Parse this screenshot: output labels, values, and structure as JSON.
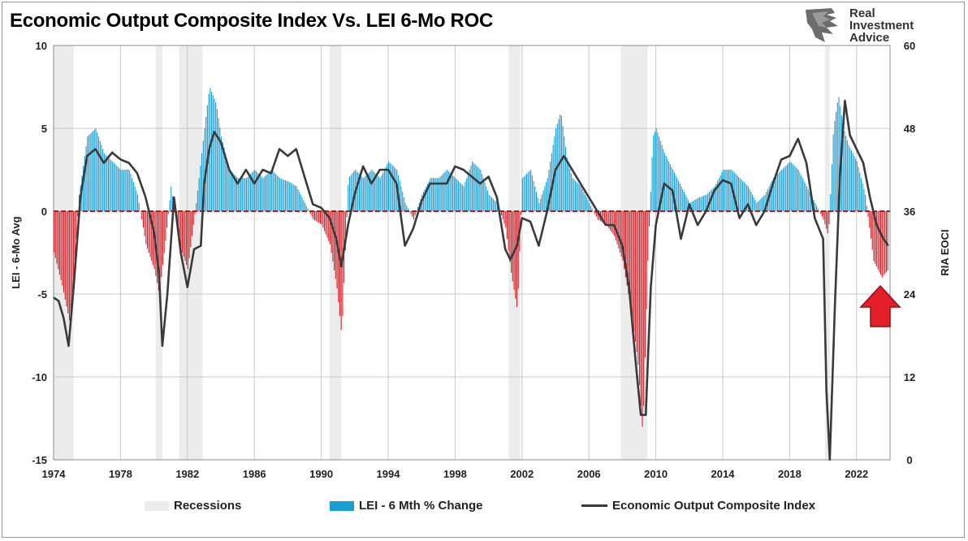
{
  "title": "Economic Output Composite Index Vs. LEI 6-Mo ROC",
  "logo": {
    "lines": [
      "Real",
      "Investment",
      "Advice"
    ],
    "icon": "eagle-head-icon"
  },
  "colors": {
    "recession": "#ececec",
    "lei_positive": "#1b9ed6",
    "lei_negative": "#d41f26",
    "eoci": "#3a3a3a",
    "zero_line": "#c0171d",
    "arrow": "#e21f26"
  },
  "legend": {
    "recessions": "Recessions",
    "lei": "LEI - 6 Mth % Change",
    "eoci": "Economic Output Composite Index"
  },
  "chart_data": {
    "type": "bar+line",
    "title": "Economic Output Composite Index Vs. LEI 6-Mo ROC",
    "x_tick_labels": [
      "1974",
      "1978",
      "1982",
      "1986",
      "1990",
      "1994",
      "1998",
      "2002",
      "2006",
      "2010",
      "2014",
      "2018",
      "2022"
    ],
    "xlim": [
      1974,
      2024
    ],
    "left_axis": {
      "label": "LEI - 6-Mo Avg",
      "ticks": [
        "10",
        "5",
        "0",
        "-5",
        "-10",
        "-15"
      ],
      "ylim": [
        -15,
        10
      ]
    },
    "right_axis": {
      "label": "RIA EOCI",
      "ticks": [
        "60",
        "48",
        "36",
        "24",
        "12",
        "0"
      ],
      "ylim": [
        0,
        60
      ]
    },
    "grid": true,
    "legend_position": "bottom",
    "recessions": [
      [
        1974.0,
        1975.2
      ],
      [
        1980.1,
        1980.5
      ],
      [
        1981.5,
        1982.9
      ],
      [
        1990.5,
        1991.2
      ],
      [
        2001.2,
        2001.9
      ],
      [
        2007.9,
        2009.5
      ],
      [
        2020.1,
        2020.4
      ]
    ],
    "series": [
      {
        "name": "LEI - 6 Mth % Change",
        "axis": "left",
        "kind": "bar",
        "x": [
          1974.0,
          1974.5,
          1975.0,
          1975.5,
          1976.0,
          1976.5,
          1977.0,
          1977.5,
          1978.0,
          1978.5,
          1979.0,
          1979.5,
          1980.0,
          1980.3,
          1980.7,
          1981.0,
          1981.5,
          1982.0,
          1982.5,
          1983.0,
          1983.3,
          1983.7,
          1984.0,
          1984.5,
          1985.0,
          1985.5,
          1986.0,
          1986.5,
          1987.0,
          1987.5,
          1988.0,
          1988.5,
          1989.0,
          1989.5,
          1990.0,
          1990.5,
          1990.9,
          1991.2,
          1991.6,
          1992.0,
          1992.5,
          1993.0,
          1993.5,
          1994.0,
          1994.5,
          1995.0,
          1995.5,
          1996.0,
          1996.5,
          1997.0,
          1997.5,
          1998.0,
          1998.5,
          1999.0,
          1999.5,
          2000.0,
          2000.5,
          2001.0,
          2001.3,
          2001.7,
          2002.0,
          2002.5,
          2003.0,
          2003.5,
          2004.0,
          2004.3,
          2004.7,
          2005.0,
          2005.5,
          2006.0,
          2006.5,
          2007.0,
          2007.5,
          2008.0,
          2008.5,
          2008.9,
          2009.2,
          2009.5,
          2009.8,
          2010.0,
          2010.5,
          2011.0,
          2011.5,
          2012.0,
          2012.5,
          2013.0,
          2013.5,
          2014.0,
          2014.5,
          2015.0,
          2015.5,
          2016.0,
          2016.5,
          2017.0,
          2017.5,
          2018.0,
          2018.5,
          2019.0,
          2019.5,
          2020.0,
          2020.3,
          2020.6,
          2020.9,
          2021.2,
          2021.5,
          2022.0,
          2022.5,
          2023.0,
          2023.5,
          2023.9
        ],
        "values": [
          -2.5,
          -4.5,
          -7.0,
          1.0,
          4.5,
          5.0,
          3.5,
          3.0,
          2.5,
          2.5,
          1.0,
          -2.0,
          -3.5,
          -5.0,
          -1.5,
          1.5,
          -2.0,
          -3.5,
          0.5,
          5.0,
          7.5,
          6.5,
          4.5,
          2.5,
          2.0,
          2.0,
          2.5,
          2.0,
          2.5,
          2.0,
          1.8,
          1.5,
          0.5,
          -0.5,
          -0.8,
          -2.0,
          -4.5,
          -7.5,
          2.0,
          2.5,
          2.0,
          2.5,
          2.0,
          3.0,
          2.5,
          0.5,
          -0.5,
          1.0,
          2.0,
          2.0,
          2.5,
          2.0,
          1.5,
          3.0,
          2.5,
          1.0,
          0.5,
          -1.0,
          -3.5,
          -6.0,
          2.0,
          2.5,
          0.5,
          2.0,
          5.0,
          6.0,
          3.0,
          2.0,
          1.5,
          0.5,
          -0.5,
          -0.8,
          -1.5,
          -3.0,
          -6.0,
          -9.0,
          -13.5,
          -3.0,
          4.5,
          5.0,
          3.5,
          2.5,
          1.5,
          0.5,
          0.8,
          1.0,
          1.5,
          2.5,
          2.5,
          2.0,
          1.5,
          0.5,
          1.0,
          2.0,
          2.5,
          3.0,
          2.5,
          1.5,
          0.5,
          -0.5,
          -1.5,
          5.0,
          7.0,
          5.0,
          4.0,
          3.0,
          1.0,
          -3.0,
          -4.0,
          -3.5
        ]
      },
      {
        "name": "Economic Output Composite Index",
        "axis": "right",
        "kind": "line",
        "x": [
          1974.0,
          1974.3,
          1974.6,
          1974.9,
          1975.2,
          1975.6,
          1976.0,
          1976.5,
          1977.0,
          1977.5,
          1978.0,
          1978.5,
          1979.0,
          1979.5,
          1980.0,
          1980.3,
          1980.5,
          1980.8,
          1981.2,
          1981.6,
          1982.0,
          1982.4,
          1982.8,
          1983.0,
          1983.3,
          1983.6,
          1984.0,
          1984.5,
          1985.0,
          1985.5,
          1986.0,
          1986.5,
          1987.0,
          1987.5,
          1988.0,
          1988.5,
          1989.0,
          1989.5,
          1990.0,
          1990.5,
          1990.9,
          1991.2,
          1991.6,
          1992.0,
          1992.5,
          1993.0,
          1993.5,
          1994.0,
          1994.5,
          1995.0,
          1995.5,
          1996.0,
          1996.5,
          1997.0,
          1997.5,
          1998.0,
          1998.5,
          1999.0,
          1999.5,
          2000.0,
          2000.5,
          2001.0,
          2001.3,
          2001.7,
          2002.0,
          2002.5,
          2003.0,
          2003.5,
          2004.0,
          2004.5,
          2005.0,
          2005.5,
          2006.0,
          2006.5,
          2007.0,
          2007.5,
          2008.0,
          2008.4,
          2008.8,
          2009.1,
          2009.4,
          2009.7,
          2010.0,
          2010.5,
          2011.0,
          2011.5,
          2012.0,
          2012.5,
          2013.0,
          2013.5,
          2014.0,
          2014.5,
          2015.0,
          2015.5,
          2016.0,
          2016.5,
          2017.0,
          2017.5,
          2018.0,
          2018.5,
          2019.0,
          2019.5,
          2020.0,
          2020.2,
          2020.4,
          2020.7,
          2021.0,
          2021.3,
          2021.6,
          2022.0,
          2022.4,
          2022.8,
          2023.2,
          2023.6,
          2023.9
        ],
        "values": [
          23.5,
          23.0,
          20.5,
          16.5,
          25.0,
          38.0,
          44.0,
          45.0,
          43.0,
          44.5,
          43.5,
          43.0,
          41.5,
          38.0,
          33.0,
          27.0,
          16.5,
          24.0,
          38.0,
          30.0,
          25.0,
          30.5,
          31.0,
          40.0,
          45.0,
          47.5,
          46.0,
          42.0,
          40.0,
          42.0,
          40.0,
          42.0,
          41.5,
          45.0,
          44.0,
          45.0,
          41.0,
          37.0,
          36.5,
          35.0,
          32.0,
          28.0,
          34.0,
          38.5,
          42.5,
          40.0,
          42.0,
          42.0,
          40.0,
          31.0,
          33.5,
          37.5,
          40.0,
          40.0,
          40.0,
          42.5,
          42.0,
          41.0,
          40.0,
          41.0,
          38.0,
          30.5,
          29.0,
          31.0,
          35.0,
          34.5,
          31.0,
          36.0,
          42.0,
          44.0,
          42.0,
          40.0,
          38.0,
          36.0,
          34.0,
          34.0,
          31.0,
          25.0,
          14.0,
          6.5,
          6.5,
          25.0,
          34.0,
          40.0,
          39.0,
          32.0,
          37.0,
          34.0,
          36.0,
          39.0,
          40.5,
          40.0,
          35.0,
          37.0,
          34.0,
          36.0,
          40.0,
          43.5,
          44.0,
          46.5,
          43.0,
          35.0,
          32.0,
          10.0,
          0.0,
          22.0,
          41.0,
          52.0,
          47.0,
          45.0,
          43.0,
          38.0,
          34.0,
          32.0,
          31.0
        ]
      }
    ]
  }
}
